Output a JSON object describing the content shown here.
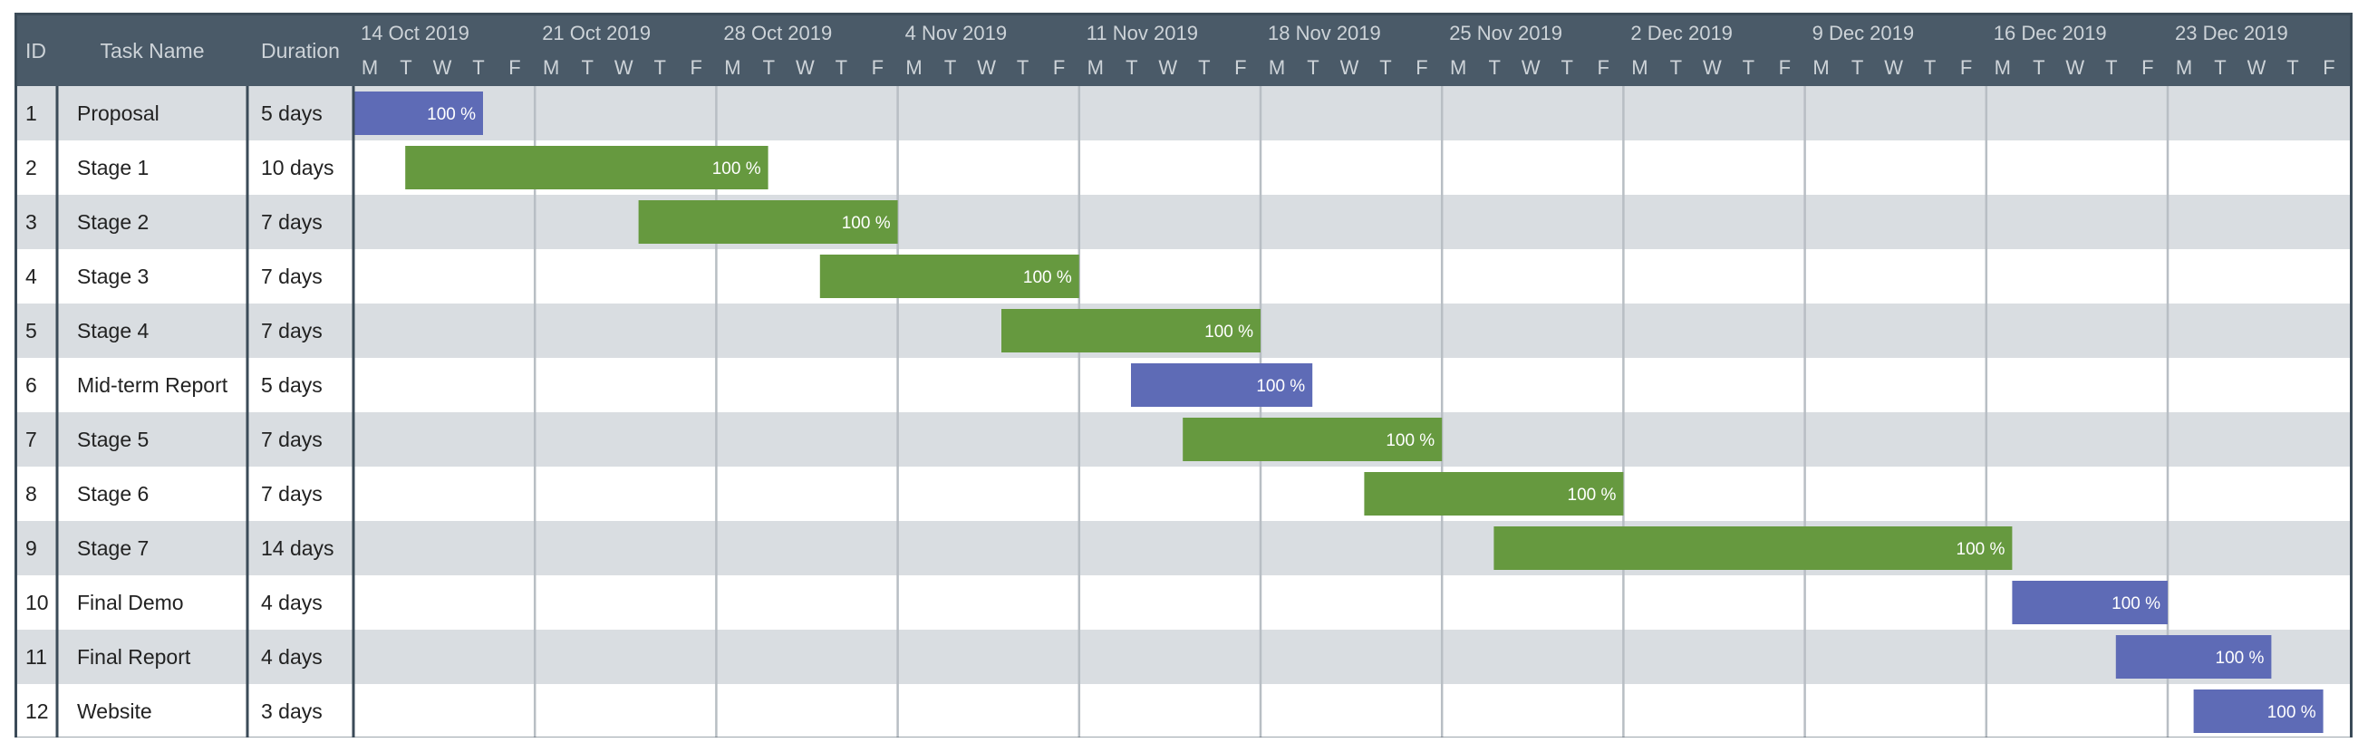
{
  "colors": {
    "header_bg": "#4a5a68",
    "header_text": "#cdd3d8",
    "row_shaded": "#d9dde1",
    "row_plain": "#ffffff",
    "border": "#3b4b58",
    "week_line": "#b8bec4",
    "bar_green": "#66993f",
    "bar_blue": "#5e6bb6",
    "bar_text": "#ffffff"
  },
  "table": {
    "columns": [
      {
        "key": "id",
        "label": "ID"
      },
      {
        "key": "name",
        "label": "Task Name"
      },
      {
        "key": "duration",
        "label": "Duration"
      }
    ]
  },
  "chart_data": {
    "type": "gantt",
    "timeline_start": "2019-10-14",
    "timeline_end": "2019-12-29",
    "week_labels": [
      "14 Oct 2019",
      "21 Oct 2019",
      "28 Oct 2019",
      "4 Nov 2019",
      "11 Nov 2019",
      "18 Nov 2019",
      "25 Nov 2019",
      "2 Dec 2019",
      "9 Dec 2019",
      "16 Dec 2019",
      "23 Dec 2019"
    ],
    "day_letters": [
      "M",
      "T",
      "W",
      "T",
      "F"
    ],
    "tasks": [
      {
        "id": "1",
        "name": "Proposal",
        "duration": "5 days",
        "start": "2019-10-14",
        "end": "2019-10-18",
        "progress": "100 %",
        "color": "blue"
      },
      {
        "id": "2",
        "name": "Stage 1",
        "duration": "10 days",
        "start": "2019-10-16",
        "end": "2019-10-29",
        "progress": "100 %",
        "color": "green"
      },
      {
        "id": "3",
        "name": "Stage 2",
        "duration": "7 days",
        "start": "2019-10-25",
        "end": "2019-11-03",
        "progress": "100 %",
        "color": "green"
      },
      {
        "id": "4",
        "name": "Stage 3",
        "duration": "7 days",
        "start": "2019-11-01",
        "end": "2019-11-10",
        "progress": "100 %",
        "color": "green"
      },
      {
        "id": "5",
        "name": "Stage 4",
        "duration": "7 days",
        "start": "2019-11-08",
        "end": "2019-11-17",
        "progress": "100 %",
        "color": "green"
      },
      {
        "id": "6",
        "name": "Mid-term Report",
        "duration": "5 days",
        "start": "2019-11-13",
        "end": "2019-11-19",
        "progress": "100 %",
        "color": "blue"
      },
      {
        "id": "7",
        "name": "Stage 5",
        "duration": "7 days",
        "start": "2019-11-15",
        "end": "2019-11-24",
        "progress": "100 %",
        "color": "green"
      },
      {
        "id": "8",
        "name": "Stage 6",
        "duration": "7 days",
        "start": "2019-11-22",
        "end": "2019-12-01",
        "progress": "100 %",
        "color": "green"
      },
      {
        "id": "9",
        "name": "Stage 7",
        "duration": "14 days",
        "start": "2019-11-27",
        "end": "2019-12-16",
        "progress": "100 %",
        "color": "green"
      },
      {
        "id": "10",
        "name": "Final Demo",
        "duration": "4 days",
        "start": "2019-12-17",
        "end": "2019-12-22",
        "progress": "100 %",
        "color": "blue"
      },
      {
        "id": "11",
        "name": "Final Report",
        "duration": "4 days",
        "start": "2019-12-21",
        "end": "2019-12-26",
        "progress": "100 %",
        "color": "blue"
      },
      {
        "id": "12",
        "name": "Website",
        "duration": "3 days",
        "start": "2019-12-24",
        "end": "2019-12-28",
        "progress": "100 %",
        "color": "blue"
      }
    ]
  }
}
